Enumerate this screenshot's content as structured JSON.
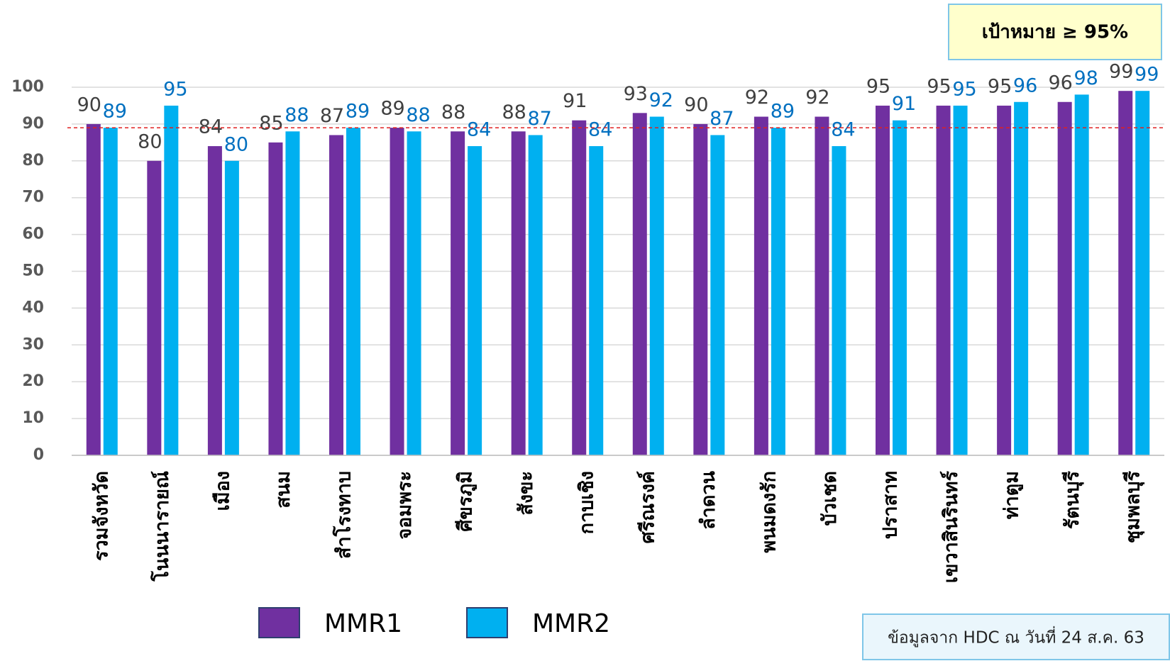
{
  "chart_data": {
    "type": "bar",
    "target_note": "เป้าหมาย ≥ 95%",
    "source_note": "ข้อมูลจาก HDC ณ วันที่ 24 ส.ค. 63",
    "categories": [
      "รวมจังหวัด",
      "โนนนารายณ์",
      "เมือง",
      "สนม",
      "สำโรงทาบ",
      "จอมพระ",
      "ศีขรภูมิ",
      "สังขะ",
      "กาบเชิง",
      "ศรีณรงค์",
      "ลำดวน",
      "พนมดงรัก",
      "บัวเชด",
      "ปราสาท",
      "เขวาสินรินทร์",
      "ท่าตูม",
      "รัตนบุรี",
      "ชุมพลบุรี"
    ],
    "series": [
      {
        "name": "MMR1",
        "color": "#7030a0",
        "label_color": "#404040",
        "values": [
          90,
          80,
          84,
          85,
          87,
          89,
          88,
          88,
          91,
          93,
          90,
          92,
          92,
          95,
          95,
          95,
          96,
          99
        ]
      },
      {
        "name": "MMR2",
        "color": "#00b0f0",
        "label_color": "#0070c0",
        "values": [
          89,
          95,
          80,
          88,
          89,
          88,
          84,
          87,
          84,
          92,
          87,
          89,
          84,
          91,
          95,
          96,
          98,
          99
        ]
      }
    ],
    "reference_line": 89,
    "ylim": [
      0,
      100
    ],
    "yticks": [
      0,
      10,
      20,
      30,
      40,
      50,
      60,
      70,
      80,
      90,
      100
    ],
    "grid": true
  }
}
